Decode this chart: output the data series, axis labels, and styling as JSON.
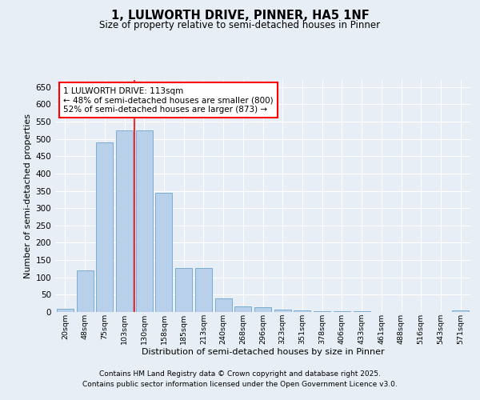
{
  "title": "1, LULWORTH DRIVE, PINNER, HA5 1NF",
  "subtitle": "Size of property relative to semi-detached houses in Pinner",
  "xlabel": "Distribution of semi-detached houses by size in Pinner",
  "ylabel": "Number of semi-detached properties",
  "categories": [
    "20sqm",
    "48sqm",
    "75sqm",
    "103sqm",
    "130sqm",
    "158sqm",
    "185sqm",
    "213sqm",
    "240sqm",
    "268sqm",
    "296sqm",
    "323sqm",
    "351sqm",
    "378sqm",
    "406sqm",
    "433sqm",
    "461sqm",
    "488sqm",
    "516sqm",
    "543sqm",
    "571sqm"
  ],
  "values": [
    10,
    120,
    490,
    525,
    525,
    345,
    128,
    128,
    40,
    16,
    15,
    7,
    5,
    2,
    2,
    2,
    1,
    0,
    0,
    0,
    4
  ],
  "bar_color": "#b8d0ea",
  "bar_edge_color": "#7aadd4",
  "background_color": "#e8eef6",
  "grid_color": "#ffffff",
  "vline_index": 4,
  "vline_color": "red",
  "annotation_text": "1 LULWORTH DRIVE: 113sqm\n← 48% of semi-detached houses are smaller (800)\n52% of semi-detached houses are larger (873) →",
  "annotation_box_facecolor": "#ffffff",
  "annotation_box_edgecolor": "red",
  "ylim": [
    0,
    670
  ],
  "yticks": [
    0,
    50,
    100,
    150,
    200,
    250,
    300,
    350,
    400,
    450,
    500,
    550,
    600,
    650
  ],
  "footer_line1": "Contains HM Land Registry data © Crown copyright and database right 2025.",
  "footer_line2": "Contains public sector information licensed under the Open Government Licence v3.0."
}
